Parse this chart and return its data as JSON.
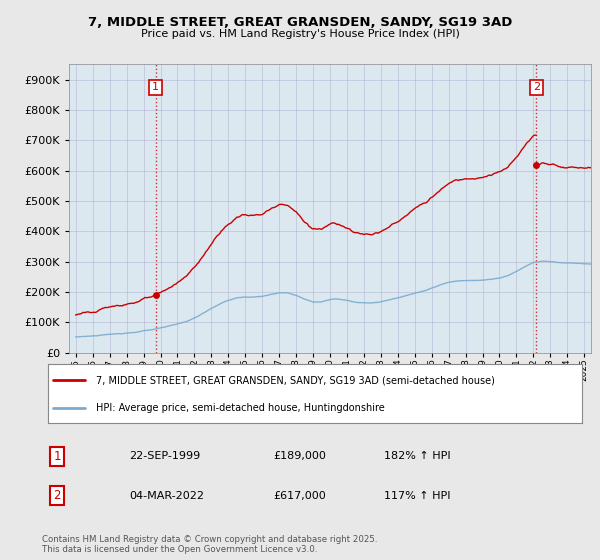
{
  "title1": "7, MIDDLE STREET, GREAT GRANSDEN, SANDY, SG19 3AD",
  "title2": "Price paid vs. HM Land Registry's House Price Index (HPI)",
  "background_color": "#e8e8e8",
  "plot_bg": "#dce8f0",
  "red_color": "#cc0000",
  "blue_color": "#7aabcf",
  "sale1_date": "22-SEP-1999",
  "sale1_price": 189000,
  "sale1_label": "182% ↑ HPI",
  "sale2_date": "04-MAR-2022",
  "sale2_price": 617000,
  "sale2_label": "117% ↑ HPI",
  "sale1_x": 1999.72,
  "sale2_x": 2022.17,
  "legend_line1": "7, MIDDLE STREET, GREAT GRANSDEN, SANDY, SG19 3AD (semi-detached house)",
  "legend_line2": "HPI: Average price, semi-detached house, Huntingdonshire",
  "footer": "Contains HM Land Registry data © Crown copyright and database right 2025.\nThis data is licensed under the Open Government Licence v3.0.",
  "ylim": [
    0,
    950000
  ],
  "xlim_start": 1994.6,
  "xlim_end": 2025.4,
  "yticks": [
    0,
    100000,
    200000,
    300000,
    400000,
    500000,
    600000,
    700000,
    800000,
    900000
  ]
}
